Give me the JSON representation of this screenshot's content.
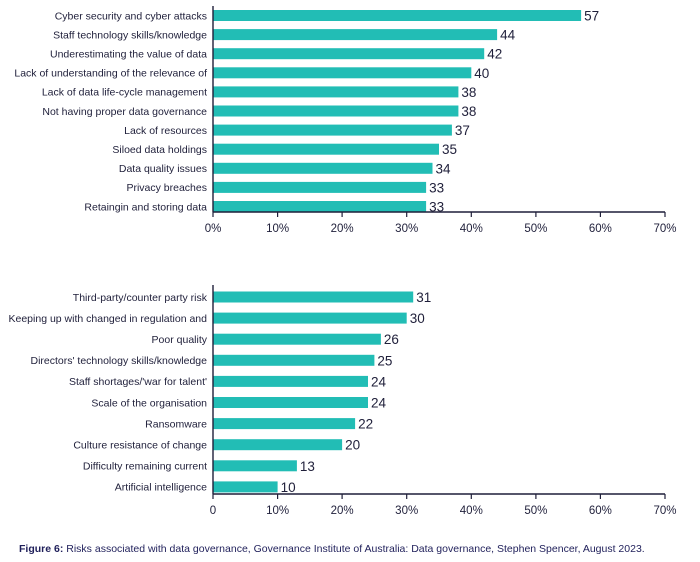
{
  "colors": {
    "bar": "#22bdb5",
    "axis": "#1f1f3a",
    "text": "#1f1f3a",
    "caption": "#1f1f5a"
  },
  "caption": {
    "label": "Figure 6:",
    "text": "Risks associated with data governance, Governance Institute of Australia: Data governance, Stephen Spencer, August 2023."
  },
  "chart_data": [
    {
      "type": "bar",
      "orientation": "horizontal",
      "title": "",
      "xlabel": "",
      "ylabel": "",
      "xlim": [
        0,
        70
      ],
      "x_ticks": [
        "0%",
        "10%",
        "20%",
        "30%",
        "40%",
        "50%",
        "60%",
        "70%"
      ],
      "grid": false,
      "categories": [
        "Cyber security and cyber attacks",
        "Staff technology skills/knowledge",
        "Underestimating the value of data",
        "Lack of understanding of the relevance of",
        "Lack of data life-cycle management",
        "Not having proper data governance",
        "Lack of resources",
        "Siloed data holdings",
        "Data quality issues",
        "Privacy breaches",
        "Retaingin and storing data"
      ],
      "values": [
        57,
        44,
        42,
        40,
        38,
        38,
        37,
        35,
        34,
        33,
        33
      ]
    },
    {
      "type": "bar",
      "orientation": "horizontal",
      "title": "",
      "xlabel": "",
      "ylabel": "",
      "xlim": [
        0,
        70
      ],
      "x_ticks": [
        "0",
        "10%",
        "20%",
        "30%",
        "40%",
        "50%",
        "60%",
        "70%"
      ],
      "grid": false,
      "categories": [
        "Third-party/counter party risk",
        "Keeping up with changed in regulation and",
        "Poor quality",
        "Directors' technology skills/knowledge",
        "Staff shortages/'war for talent'",
        "Scale of the organisation",
        "Ransomware",
        "Culture resistance of change",
        "Difficulty remaining current",
        "Artificial intelligence"
      ],
      "values": [
        31,
        30,
        26,
        25,
        24,
        24,
        22,
        20,
        13,
        10
      ]
    }
  ]
}
